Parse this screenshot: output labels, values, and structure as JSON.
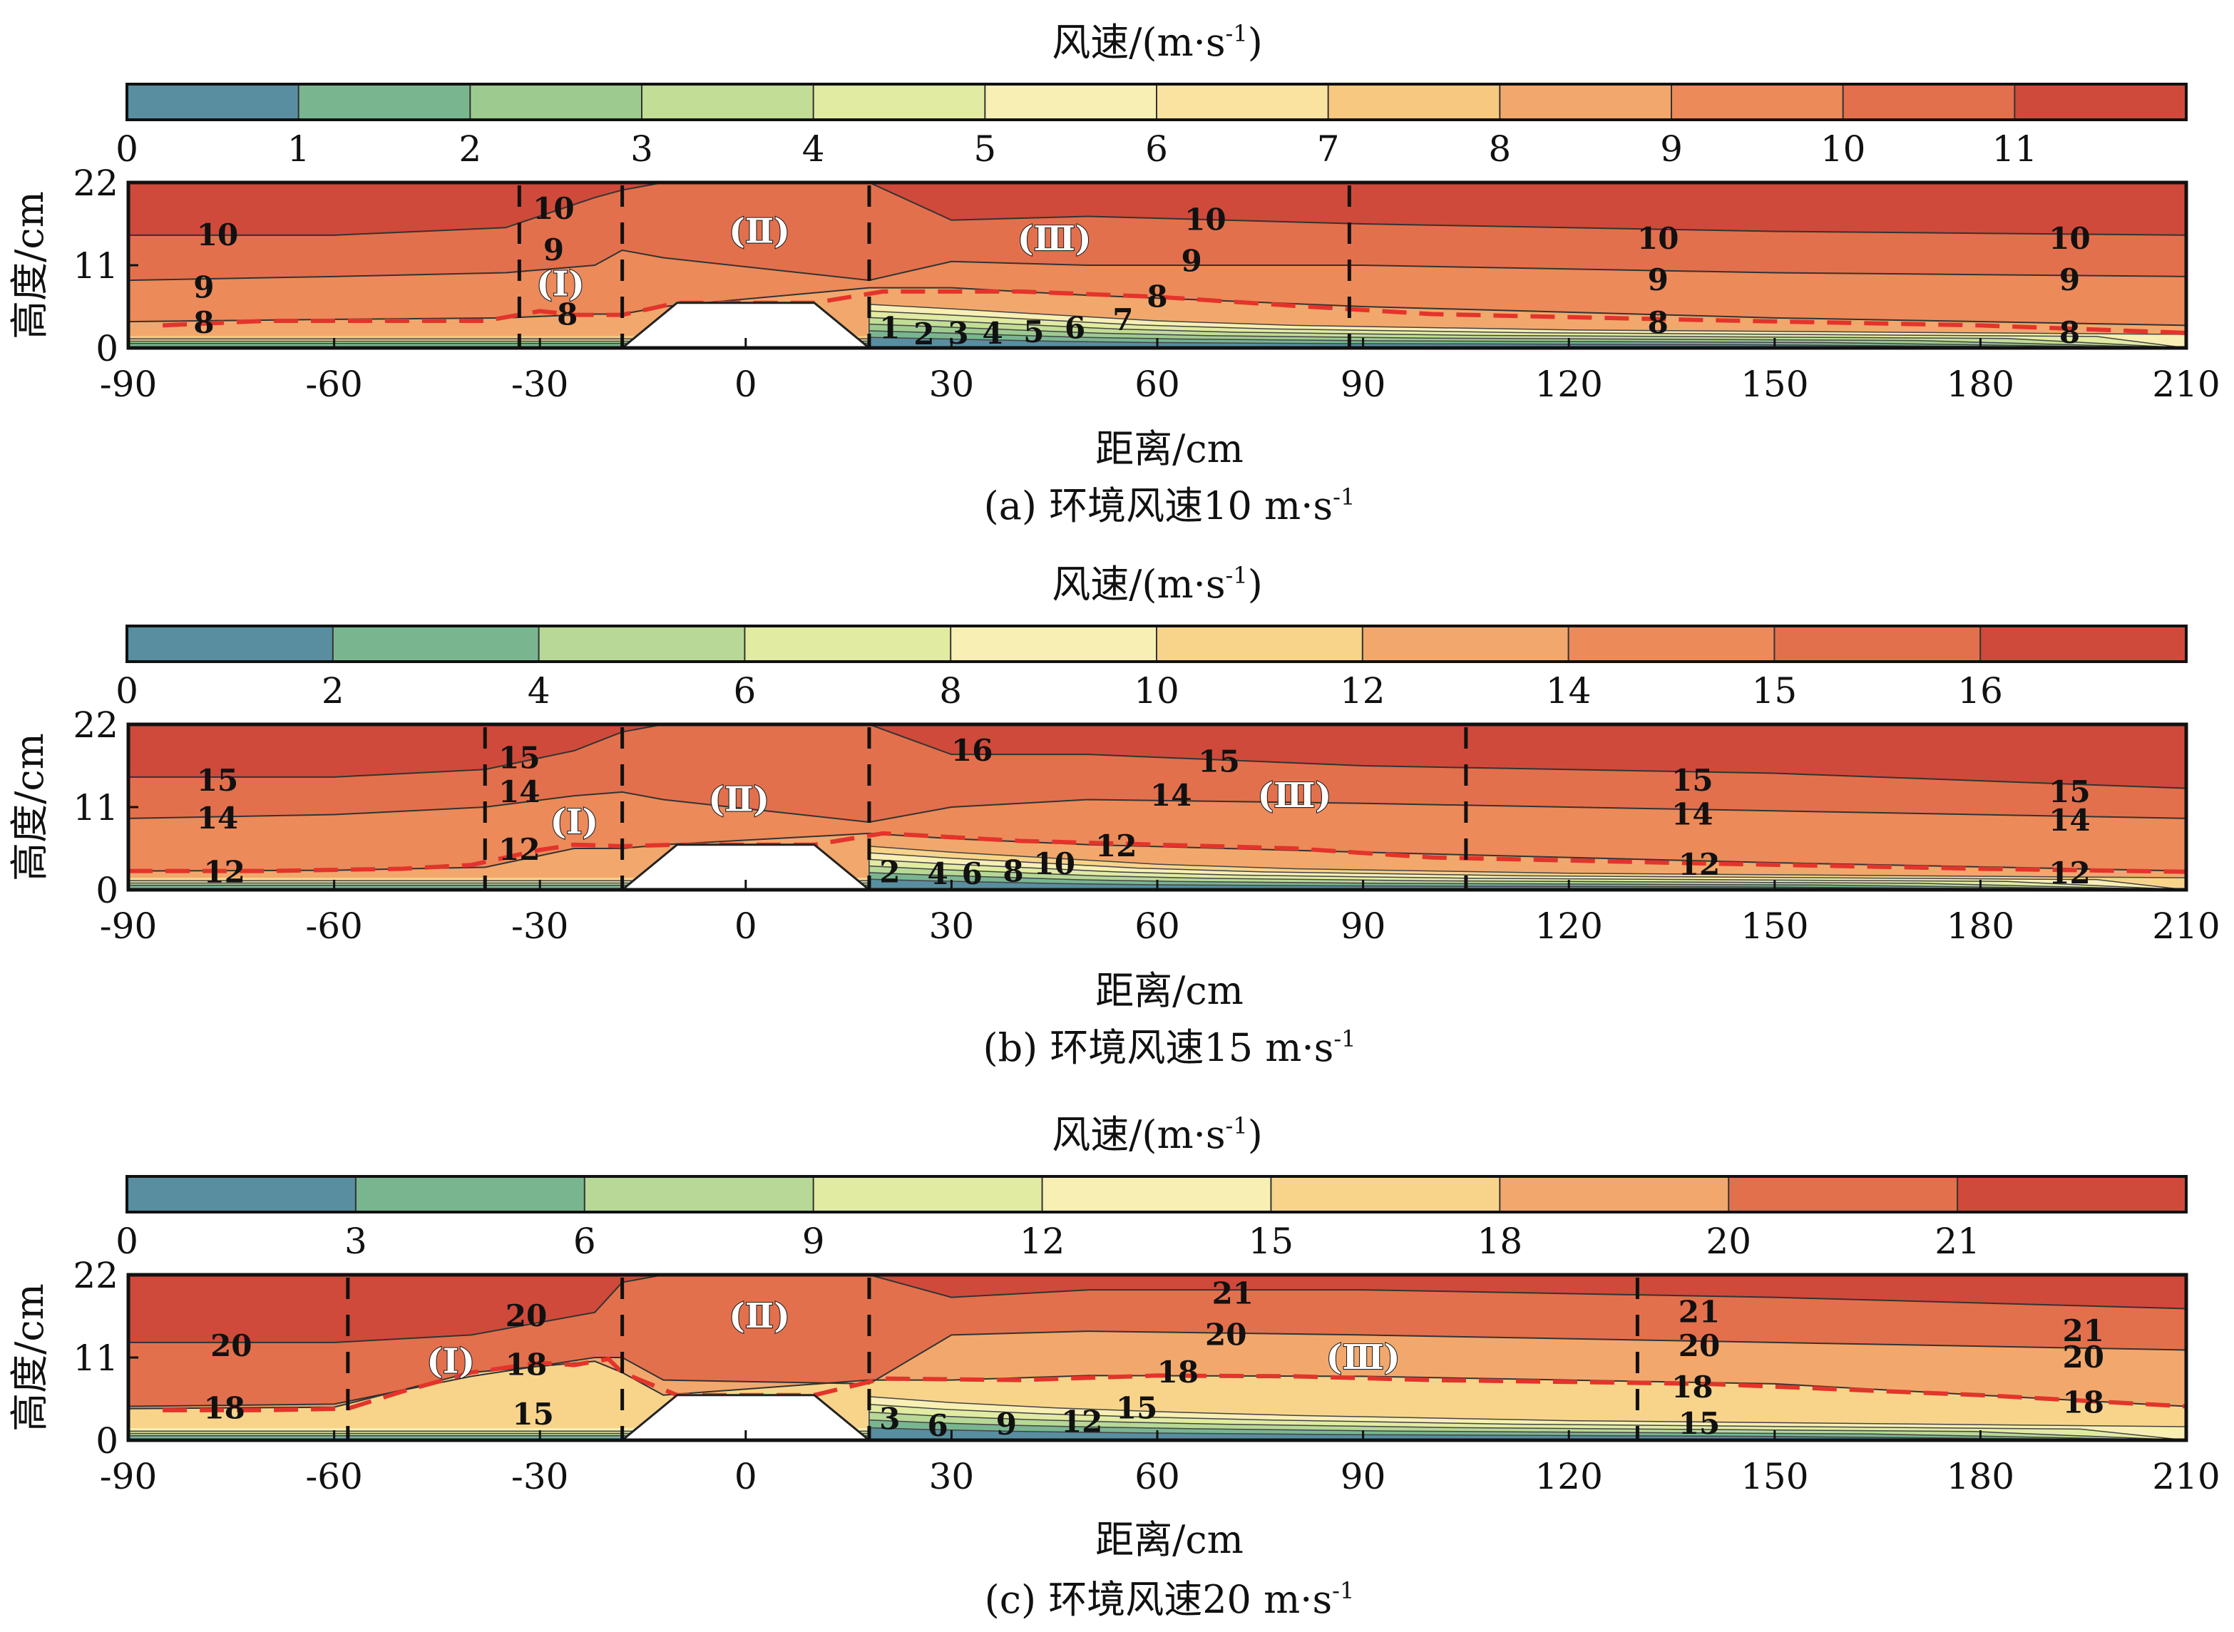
{
  "chart_data": [
    {
      "type": "contour",
      "title": "风速/(m·s",
      "title_sup": "-1",
      "title_end": ")",
      "caption": "(a) 环境风速10 m·s",
      "caption_sup": "-1",
      "xlabel": "距离/cm",
      "ylabel": "高度/cm",
      "xlim": [
        -90,
        210
      ],
      "ylim": [
        0,
        22
      ],
      "x_ticks": [
        "-90",
        "-60",
        "-30",
        "0",
        "30",
        "60",
        "90",
        "120",
        "150",
        "180",
        "210"
      ],
      "y_ticks": [
        "0",
        "11",
        "22"
      ],
      "colorbar_levels": [
        0,
        1,
        2,
        3,
        4,
        5,
        6,
        7,
        8,
        9,
        10,
        11,
        12
      ],
      "colorbar_ticks": [
        "0",
        "1",
        "2",
        "3",
        "4",
        "5",
        "6",
        "7",
        "8",
        "9",
        "10",
        "11"
      ],
      "colorbar_colors": [
        "#588ea0",
        "#79b690",
        "#9dcb8f",
        "#c2dd96",
        "#e1eba2",
        "#f8efb4",
        "#fae3a0",
        "#f7c87f",
        "#f2a86c",
        "#ec8a5a",
        "#e3704c",
        "#cf4a3a"
      ],
      "dashed_x": [
        -33,
        -18,
        18,
        88
      ],
      "region_labels": [
        {
          "text": "(Ⅰ)",
          "x": -27,
          "y": 8.5
        },
        {
          "text": "(Ⅱ)",
          "x": 2,
          "y": 15.5
        },
        {
          "text": "(Ⅲ)",
          "x": 45,
          "y": 14.5
        }
      ],
      "contour_labels": [
        {
          "text": "10",
          "x": -77,
          "y": 15
        },
        {
          "text": "10",
          "x": -28,
          "y": 18.5
        },
        {
          "text": "10",
          "x": 67,
          "y": 17
        },
        {
          "text": "10",
          "x": 133,
          "y": 14.5
        },
        {
          "text": "10",
          "x": 193,
          "y": 14.5
        },
        {
          "text": "9",
          "x": -79,
          "y": 8
        },
        {
          "text": "9",
          "x": -28,
          "y": 13
        },
        {
          "text": "9",
          "x": 65,
          "y": 11.5
        },
        {
          "text": "9",
          "x": 133,
          "y": 9
        },
        {
          "text": "9",
          "x": 193,
          "y": 9
        },
        {
          "text": "8",
          "x": -79,
          "y": 3.3
        },
        {
          "text": "8",
          "x": -26,
          "y": 4.4
        },
        {
          "text": "8",
          "x": 60,
          "y": 6.8
        },
        {
          "text": "8",
          "x": 133,
          "y": 3.3
        },
        {
          "text": "8",
          "x": 193,
          "y": 2
        },
        {
          "text": "1",
          "x": 21,
          "y": 2.6
        },
        {
          "text": "2",
          "x": 26,
          "y": 1.8
        },
        {
          "text": "3",
          "x": 31,
          "y": 1.9
        },
        {
          "text": "4",
          "x": 36,
          "y": 1.9
        },
        {
          "text": "5",
          "x": 42,
          "y": 2.1
        },
        {
          "text": "6",
          "x": 48,
          "y": 2.6
        },
        {
          "text": "7",
          "x": 55,
          "y": 3.7
        }
      ],
      "red_dashed_line": {
        "x": [
          -85,
          -70,
          -50,
          -38,
          -30,
          -25,
          -18,
          -10,
          10,
          20,
          40,
          60,
          80,
          100,
          140,
          180,
          210
        ],
        "y": [
          3.0,
          3.6,
          3.6,
          3.6,
          4.9,
          4.4,
          4.4,
          6.0,
          6.0,
          7.5,
          7.5,
          6.8,
          5.6,
          4.5,
          3.7,
          3.0,
          2.0
        ]
      },
      "field_upper": {
        "x": [
          -90,
          -60,
          -35,
          -22,
          -18,
          -12,
          18,
          30,
          50,
          90,
          150,
          210
        ],
        "y10": [
          15,
          15,
          16,
          20,
          21,
          22,
          22,
          17,
          17.5,
          16.5,
          15.5,
          15
        ],
        "y9": [
          9,
          9.5,
          10,
          11,
          13,
          12,
          9,
          11.5,
          11,
          11,
          10,
          9.5
        ],
        "y8": [
          3.5,
          3.8,
          4,
          4.5,
          4.5,
          5.5,
          8,
          8,
          7,
          5.5,
          4,
          3
        ]
      },
      "low_speed_wedge": {
        "x": [
          18,
          30,
          45,
          60,
          80,
          120,
          210
        ],
        "y": [
          5.8,
          5.2,
          4.4,
          3.6,
          3.0,
          2.4,
          1.8
        ]
      }
    },
    {
      "type": "contour",
      "title": "风速/(m·s",
      "title_sup": "-1",
      "title_end": ")",
      "caption": "(b) 环境风速15 m·s",
      "caption_sup": "-1",
      "xlabel": "距离/cm",
      "ylabel": "高度/cm",
      "xlim": [
        -90,
        210
      ],
      "ylim": [
        0,
        22
      ],
      "x_ticks": [
        "-90",
        "-60",
        "-30",
        "0",
        "30",
        "60",
        "90",
        "120",
        "150",
        "180",
        "210"
      ],
      "y_ticks": [
        "0",
        "11",
        "22"
      ],
      "colorbar_levels": [
        0,
        2,
        4,
        6,
        8,
        10,
        12,
        14,
        15,
        16,
        17
      ],
      "colorbar_ticks": [
        "0",
        "2",
        "4",
        "6",
        "8",
        "10",
        "12",
        "14",
        "15",
        "16"
      ],
      "colorbar_colors": [
        "#588ea0",
        "#79b690",
        "#b7d896",
        "#e1eba2",
        "#f8efb4",
        "#f8d48b",
        "#f2a86c",
        "#ec8a5a",
        "#e3704c",
        "#cf4a3a"
      ],
      "dashed_x": [
        -38,
        -18,
        18,
        105
      ],
      "region_labels": [
        {
          "text": "(Ⅰ)",
          "x": -25,
          "y": 9
        },
        {
          "text": "(Ⅱ)",
          "x": -1,
          "y": 12
        },
        {
          "text": "(Ⅲ)",
          "x": 80,
          "y": 12.5
        }
      ],
      "contour_labels": [
        {
          "text": "15",
          "x": -77,
          "y": 14.5
        },
        {
          "text": "15",
          "x": -33,
          "y": 17.5
        },
        {
          "text": "15",
          "x": 69,
          "y": 17
        },
        {
          "text": "15",
          "x": 138,
          "y": 14.5
        },
        {
          "text": "15",
          "x": 193,
          "y": 13
        },
        {
          "text": "14",
          "x": -77,
          "y": 9.5
        },
        {
          "text": "14",
          "x": -33,
          "y": 13
        },
        {
          "text": "14",
          "x": 62,
          "y": 12.5
        },
        {
          "text": "14",
          "x": 138,
          "y": 10
        },
        {
          "text": "14",
          "x": 193,
          "y": 9.2
        },
        {
          "text": "16",
          "x": 33,
          "y": 18.5
        },
        {
          "text": "12",
          "x": -76,
          "y": 2.3
        },
        {
          "text": "12",
          "x": -33,
          "y": 5.3
        },
        {
          "text": "12",
          "x": 54,
          "y": 5.8
        },
        {
          "text": "12",
          "x": 139,
          "y": 3.3
        },
        {
          "text": "12",
          "x": 193,
          "y": 2.2
        },
        {
          "text": "2",
          "x": 21,
          "y": 2.3
        },
        {
          "text": "4",
          "x": 28,
          "y": 2.1
        },
        {
          "text": "6",
          "x": 33,
          "y": 2.1
        },
        {
          "text": "8",
          "x": 39,
          "y": 2.4
        },
        {
          "text": "10",
          "x": 45,
          "y": 3.4
        }
      ],
      "red_dashed_line": {
        "x": [
          -90,
          -70,
          -50,
          -40,
          -30,
          -25,
          -18,
          -10,
          10,
          20,
          40,
          60,
          80,
          100,
          140,
          180,
          210
        ],
        "y": [
          2.5,
          2.5,
          2.8,
          3.3,
          5.3,
          6.0,
          5.8,
          6.0,
          6.0,
          7.5,
          6.5,
          6.0,
          5.5,
          4.3,
          3.5,
          2.8,
          2.4
        ]
      },
      "field_upper": {
        "x": [
          -90,
          -60,
          -38,
          -25,
          -18,
          -12,
          18,
          30,
          50,
          90,
          150,
          210
        ],
        "y10": [
          15,
          15,
          16,
          18.5,
          21,
          22,
          22,
          18,
          18,
          16.5,
          15.5,
          13.5
        ],
        "y9": [
          9.5,
          10,
          11,
          12.5,
          13,
          12,
          9,
          11,
          12,
          11.5,
          10.5,
          9.5
        ],
        "y8": [
          2.5,
          2.6,
          3,
          5.5,
          5.5,
          6,
          7.5,
          6.8,
          6,
          5,
          3.6,
          2.5
        ]
      },
      "low_speed_wedge": {
        "x": [
          18,
          30,
          45,
          60,
          80,
          120,
          210
        ],
        "y": [
          5.8,
          5.0,
          4.2,
          3.4,
          2.8,
          2.2,
          1.6
        ]
      }
    },
    {
      "type": "contour",
      "title": "风速/(m·s",
      "title_sup": "-1",
      "title_end": ")",
      "caption": "(c) 环境风速20 m·s",
      "caption_sup": "-1",
      "xlabel": "距离/cm",
      "ylabel": "高度/cm",
      "xlim": [
        -90,
        210
      ],
      "ylim": [
        0,
        22
      ],
      "x_ticks": [
        "-90",
        "-60",
        "-30",
        "0",
        "30",
        "60",
        "90",
        "120",
        "150",
        "180",
        "210"
      ],
      "y_ticks": [
        "0",
        "11",
        "22"
      ],
      "colorbar_levels": [
        0,
        3,
        6,
        9,
        12,
        15,
        18,
        20,
        21,
        22
      ],
      "colorbar_ticks": [
        "0",
        "3",
        "6",
        "9",
        "12",
        "15",
        "18",
        "20",
        "21"
      ],
      "colorbar_colors": [
        "#588ea0",
        "#79b690",
        "#b7d896",
        "#e1eba2",
        "#f8efb4",
        "#f8d48b",
        "#f2a86c",
        "#e3704c",
        "#cf4a3a"
      ],
      "dashed_x": [
        -58,
        -18,
        18,
        130
      ],
      "region_labels": [
        {
          "text": "(Ⅰ)",
          "x": -43,
          "y": 10.5
        },
        {
          "text": "(Ⅱ)",
          "x": 2,
          "y": 16.5
        },
        {
          "text": "(Ⅲ)",
          "x": 90,
          "y": 11
        }
      ],
      "contour_labels": [
        {
          "text": "20",
          "x": -75,
          "y": 12.5
        },
        {
          "text": "20",
          "x": -32,
          "y": 16.5
        },
        {
          "text": "20",
          "x": 70,
          "y": 14
        },
        {
          "text": "20",
          "x": 139,
          "y": 12.5
        },
        {
          "text": "20",
          "x": 195,
          "y": 11
        },
        {
          "text": "21",
          "x": 71,
          "y": 19.5
        },
        {
          "text": "21",
          "x": 139,
          "y": 17
        },
        {
          "text": "21",
          "x": 195,
          "y": 14.5
        },
        {
          "text": "18",
          "x": -76,
          "y": 4.2
        },
        {
          "text": "18",
          "x": -32,
          "y": 10
        },
        {
          "text": "18",
          "x": 63,
          "y": 9
        },
        {
          "text": "18",
          "x": 138,
          "y": 7
        },
        {
          "text": "18",
          "x": 195,
          "y": 5
        },
        {
          "text": "15",
          "x": -31,
          "y": 3.4
        },
        {
          "text": "15",
          "x": 57,
          "y": 4.2
        },
        {
          "text": "15",
          "x": 139,
          "y": 2.2
        },
        {
          "text": "3",
          "x": 21,
          "y": 2.8
        },
        {
          "text": "6",
          "x": 28,
          "y": 1.9
        },
        {
          "text": "9",
          "x": 38,
          "y": 2.1
        },
        {
          "text": "12",
          "x": 49,
          "y": 2.4
        }
      ],
      "red_dashed_line": {
        "x": [
          -85,
          -70,
          -58,
          -50,
          -40,
          -30,
          -25,
          -20,
          -18,
          -10,
          10,
          20,
          40,
          60,
          80,
          100,
          140,
          180,
          210
        ],
        "y": [
          4.0,
          4.0,
          4.2,
          6.5,
          9.0,
          10.3,
          10.0,
          10.8,
          9.0,
          6.0,
          6.0,
          8.2,
          8.0,
          8.6,
          8.5,
          8.0,
          7.5,
          6.0,
          4.5
        ]
      },
      "field_upper": {
        "x": [
          -90,
          -60,
          -40,
          -22,
          -18,
          -12,
          18,
          30,
          50,
          90,
          150,
          210
        ],
        "y10": [
          13,
          13,
          14,
          17,
          21,
          22,
          22,
          19,
          20,
          20,
          19,
          17.5
        ],
        "y9": [
          4.5,
          4.8,
          8.5,
          11,
          11,
          8,
          7.5,
          14,
          14.5,
          14,
          13,
          12
        ],
        "y8": [
          4.2,
          4.4,
          9,
          10.5,
          9,
          6,
          8,
          8,
          8.6,
          8.5,
          7.5,
          4.5
        ]
      },
      "low_speed_wedge": {
        "x": [
          18,
          30,
          45,
          60,
          80,
          120,
          210
        ],
        "y": [
          5.8,
          5.0,
          4.3,
          3.8,
          3.3,
          2.6,
          1.8
        ]
      }
    }
  ]
}
